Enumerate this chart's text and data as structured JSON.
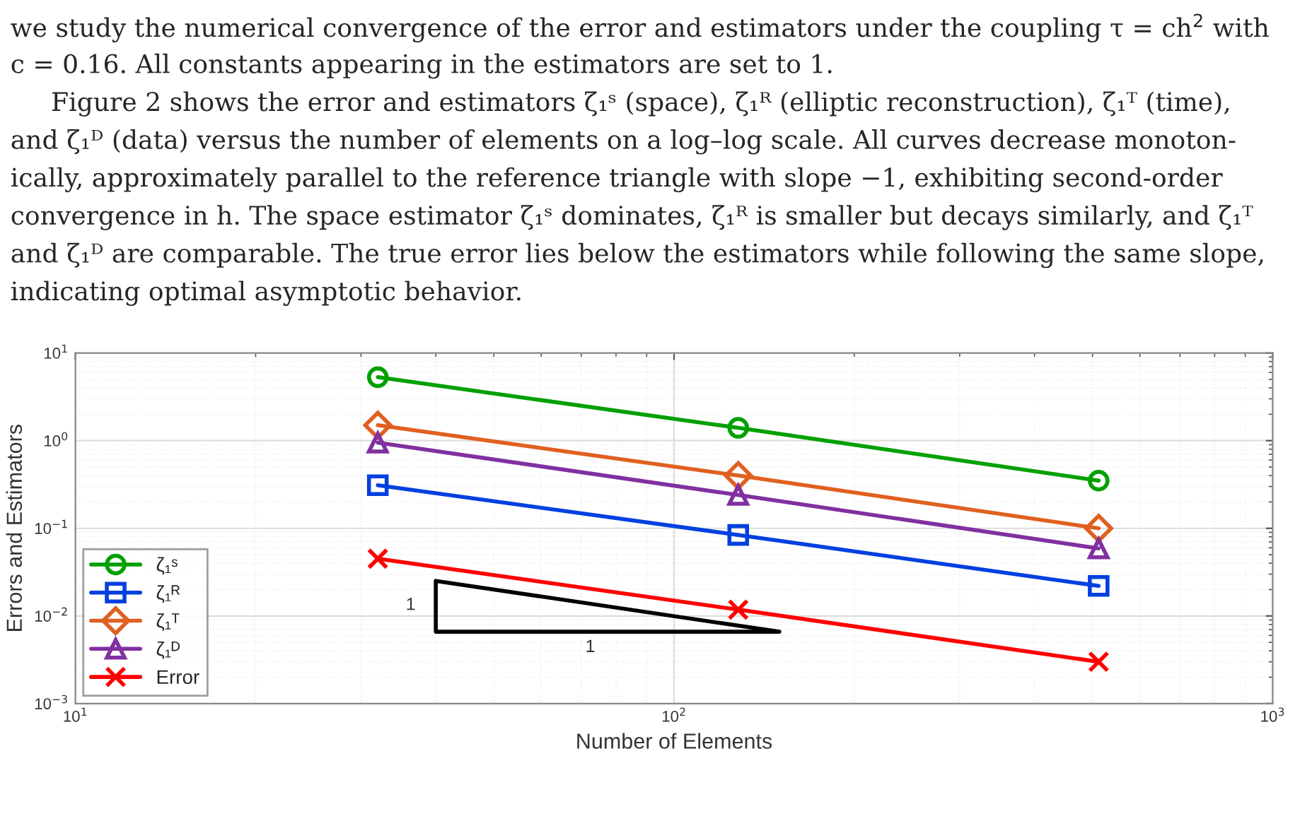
{
  "chart_data": {
    "type": "line",
    "xlabel": "Number of Elements",
    "ylabel": "Errors and Estimators",
    "log": "xy",
    "grid": true,
    "legend": "bottom left",
    "line_style": "solid",
    "x": [
      32,
      128,
      512
    ],
    "xlim": [
      10,
      1000
    ],
    "xticks": [
      {
        "value": 10,
        "label": "10$^{1}$"
      },
      {
        "value": 100,
        "label": "10$^{2}$"
      },
      {
        "value": 1000,
        "label": "10$^{3}$"
      }
    ],
    "ylim": [
      0.001,
      10
    ],
    "yticks": [
      {
        "value": 0.001,
        "label": "10$^{−3}$"
      },
      {
        "value": 0.01,
        "label": "10$^{−2}$"
      },
      {
        "value": 0.1,
        "label": "10$^{−1}$"
      },
      {
        "value": 1,
        "label": "10$^{0}$"
      },
      {
        "value": 10,
        "label": "10$^{1}$"
      }
    ],
    "series": [
      {
        "name": "ζ₁ˢ",
        "color": "#00a000",
        "marker": "circle",
        "values": [
          5.3,
          1.4,
          0.35
        ]
      },
      {
        "name": "ζ₁ᴿ",
        "color": "#0040e0",
        "marker": "square",
        "values": [
          0.31,
          0.084,
          0.022
        ]
      },
      {
        "name": "ζ₁ᵀ",
        "color": "#e06020",
        "marker": "diamond",
        "values": [
          1.5,
          0.4,
          0.1
        ]
      },
      {
        "name": "ζ₁ᴰ",
        "color": "#8030a0",
        "marker": "triangle",
        "values": [
          0.95,
          0.24,
          0.059
        ]
      },
      {
        "name": "Error",
        "color": "#ff0000",
        "marker": "cross",
        "values": [
          0.045,
          0.0118,
          0.003
        ]
      }
    ],
    "annotations": [
      "1",
      "1",
      "we study the numerical convergence of the error and estimators under the coupling τ = ch$^{2}$ with",
      "c = 0.16. All constants appearing in the estimators are set to 1.",
      "     Figure 2 shows the error and estimators ζ₁ˢ (space), ζ₁ᴿ (elliptic reconstruction), ζ₁ᵀ (time),",
      "and ζ₁ᴰ (data) versus the number of elements on a log–log scale. All curves decrease monoton-",
      "ically, approximately parallel to the reference triangle with slope −1, exhibiting second-order",
      "convergence in h. The space estimator ζ₁ˢ dominates, ζ₁ᴿ is smaller but decays similarly, and ζ₁ᵀ",
      "and ζ₁ᴰ are comparable. The true error lies below the estimators while following the same slope,",
      "indicating optimal asymptotic behavior."
    ]
  }
}
